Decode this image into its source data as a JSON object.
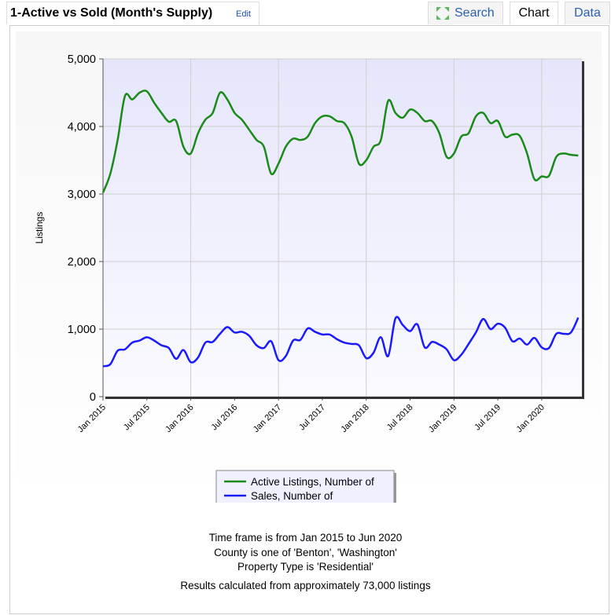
{
  "header": {
    "title": "1-Active vs Sold (Month's Supply)",
    "edit": "Edit"
  },
  "tabs": [
    "Search",
    "Chart",
    "Data"
  ],
  "chart_data": {
    "type": "line",
    "y_label": "Listings",
    "categories": [
      "Jan 2015",
      null,
      null,
      null,
      null,
      null,
      "Jul 2015",
      null,
      null,
      null,
      null,
      null,
      "Jan 2016",
      null,
      null,
      null,
      null,
      null,
      "Jul 2016",
      null,
      null,
      null,
      null,
      null,
      "Jan 2017",
      null,
      null,
      null,
      null,
      null,
      "Jul 2017",
      null,
      null,
      null,
      null,
      null,
      "Jan 2018",
      null,
      null,
      null,
      null,
      null,
      "Jul 2018",
      null,
      null,
      null,
      null,
      null,
      "Jan 2019",
      null,
      null,
      null,
      null,
      null,
      "Jul 2019",
      null,
      null,
      null,
      null,
      null,
      "Jan 2020",
      null,
      null,
      null,
      null,
      null
    ],
    "series": [
      {
        "name": "Active Listings, Number of",
        "color": "#1a8a1a",
        "values": [
          3020,
          3300,
          3800,
          4450,
          4400,
          4500,
          4520,
          4350,
          4200,
          4070,
          4080,
          3700,
          3600,
          3900,
          4100,
          4200,
          4500,
          4400,
          4200,
          4100,
          3950,
          3800,
          3700,
          3300,
          3450,
          3700,
          3820,
          3800,
          3850,
          4050,
          4150,
          4150,
          4080,
          4050,
          3850,
          3450,
          3500,
          3700,
          3800,
          4380,
          4200,
          4130,
          4250,
          4200,
          4080,
          4080,
          3900,
          3550,
          3600,
          3850,
          3900,
          4150,
          4200,
          4050,
          4080,
          3850,
          3880,
          3860,
          3600,
          3220,
          3260,
          3270,
          3550,
          3600,
          3580,
          3570
        ]
      },
      {
        "name": "Sales, Number of",
        "color": "#1a1aff",
        "values": [
          450,
          480,
          680,
          700,
          800,
          830,
          880,
          830,
          760,
          720,
          560,
          690,
          510,
          580,
          800,
          810,
          930,
          1030,
          950,
          960,
          900,
          760,
          720,
          820,
          540,
          600,
          830,
          840,
          1010,
          960,
          920,
          920,
          850,
          800,
          780,
          760,
          570,
          650,
          880,
          600,
          1160,
          1060,
          970,
          1070,
          730,
          810,
          770,
          700,
          540,
          620,
          780,
          950,
          1150,
          1000,
          1080,
          1020,
          820,
          860,
          770,
          870,
          730,
          720,
          930,
          930,
          950,
          1170
        ]
      }
    ],
    "ylim": [
      0,
      5000
    ],
    "yticks": [
      0,
      {
        "value": 1000,
        "label": "1,000"
      },
      {
        "value": 2000,
        "label": "2,000"
      },
      {
        "value": 3000,
        "label": "3,000"
      },
      {
        "value": 4000,
        "label": "4,000"
      },
      {
        "value": 5000,
        "label": "5,000"
      }
    ],
    "grid": true
  },
  "notes": [
    "Time frame is from Jan 2015 to Jun 2020",
    "County is one of 'Benton', 'Washington'",
    "Property Type is 'Residential'",
    "Results calculated from approximately 73,000 listings"
  ]
}
